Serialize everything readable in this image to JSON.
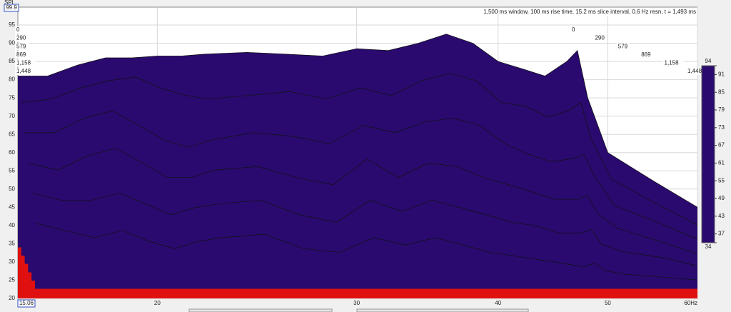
{
  "chart_data": {
    "type": "waterfall",
    "y_label": "SPL",
    "annotation": "1,500 ms window, 100 ms rise time, 15.2 ms slice interval, 0.6 Hz resn, t = 1,493 ms",
    "xscale": "log",
    "xlim": [
      15.06,
      60
    ],
    "ylim": [
      20,
      99.9
    ],
    "xticks": [
      20,
      30,
      40,
      50,
      {
        "value": 60,
        "label": "60Hz"
      }
    ],
    "yticks": [
      20,
      25,
      30,
      35,
      40,
      45,
      50,
      55,
      60,
      65,
      70,
      75,
      80,
      85,
      90,
      95
    ],
    "grid": true,
    "x": [
      15.06,
      16,
      17,
      18,
      19,
      20,
      21,
      22,
      24,
      26,
      28,
      30,
      32,
      34,
      36,
      38,
      40,
      42,
      44,
      46,
      47,
      48,
      50,
      55,
      60
    ],
    "series": [
      {
        "name": "0",
        "time": 0,
        "values": [
          81,
          81,
          84,
          86,
          86,
          86.5,
          86.5,
          87,
          87.5,
          87,
          86.5,
          88.5,
          88,
          90,
          92.5,
          90,
          85,
          83,
          81,
          85,
          88,
          75,
          60,
          52,
          45
        ]
      },
      {
        "name": "290",
        "time": 290,
        "values": [
          76,
          77,
          80,
          82,
          83,
          80,
          78,
          77,
          78,
          79,
          77,
          80,
          78,
          82,
          84,
          82,
          76,
          75,
          72,
          74,
          76,
          66,
          55,
          48,
          42
        ]
      },
      {
        "name": "579",
        "time": 579,
        "values": [
          70,
          70,
          74,
          76,
          72,
          68,
          66,
          68,
          70,
          69,
          67,
          72,
          70,
          73,
          74,
          72,
          67,
          64,
          62,
          63,
          64,
          58,
          50,
          45,
          40
        ]
      },
      {
        "name": "869",
        "time": 869,
        "values": [
          64,
          62,
          66,
          68,
          64,
          60,
          60,
          62,
          63,
          60,
          58,
          65,
          60,
          64,
          63,
          60,
          58,
          56,
          54,
          54,
          55,
          50,
          46,
          42,
          38
        ]
      },
      {
        "name": "1,158",
        "time": 1158,
        "values": [
          58,
          56,
          56,
          58,
          55,
          52,
          54,
          55,
          56,
          52,
          50,
          56,
          53,
          56,
          54,
          52,
          50,
          49,
          47,
          47,
          48,
          44,
          42,
          40,
          37
        ]
      },
      {
        "name": "1,448",
        "time": 1448,
        "values": [
          52,
          50,
          48,
          50,
          47,
          45,
          47,
          48,
          49,
          45,
          44,
          48,
          46,
          48,
          46,
          44,
          43,
          42,
          41,
          40,
          41,
          39,
          38,
          37,
          36
        ]
      }
    ],
    "colorbar": {
      "lim": [
        34,
        94
      ],
      "ticks": [
        34,
        37,
        43,
        49,
        55,
        61,
        67,
        73,
        79,
        85,
        91,
        94
      ],
      "colors": [
        "#2a0a6e",
        "#30169a",
        "#1a4cc8",
        "#0a82b0",
        "#0aa598",
        "#10b860",
        "#38c020",
        "#90c810",
        "#d8d000",
        "#f0a000",
        "#f05010",
        "#e01010"
      ]
    }
  }
}
